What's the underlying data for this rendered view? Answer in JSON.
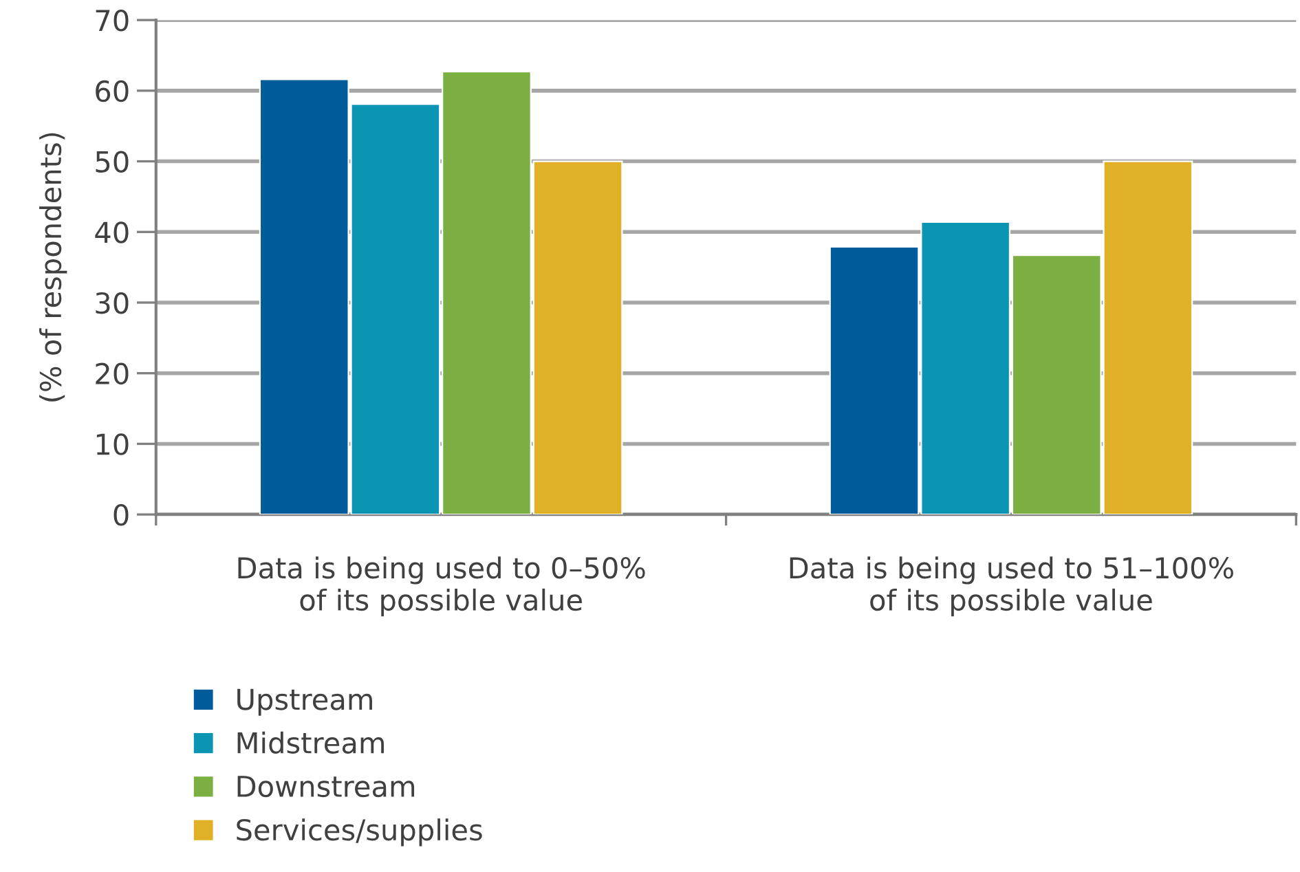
{
  "chart_data": {
    "type": "bar",
    "ylabel": "(% of respondents)",
    "categories": [
      "Data is being used to 0–50%\nof its possible value",
      "Data is being used to 51–100%\nof its possible value"
    ],
    "series": [
      {
        "name": "Upstream",
        "color": "#005b9a",
        "values": [
          61.6,
          37.9
        ]
      },
      {
        "name": "Midstream",
        "color": "#0c95b3",
        "values": [
          58.1,
          41.4
        ]
      },
      {
        "name": "Downstream",
        "color": "#7caf42",
        "values": [
          62.7,
          36.7
        ]
      },
      {
        "name": "Services/supplies",
        "color": "#e0b026",
        "values": [
          50,
          50
        ]
      }
    ],
    "ylim": [
      0,
      70
    ],
    "yticks": [
      0,
      10,
      20,
      30,
      40,
      50,
      60,
      70
    ],
    "grid": "y",
    "legend": "bottom left"
  }
}
